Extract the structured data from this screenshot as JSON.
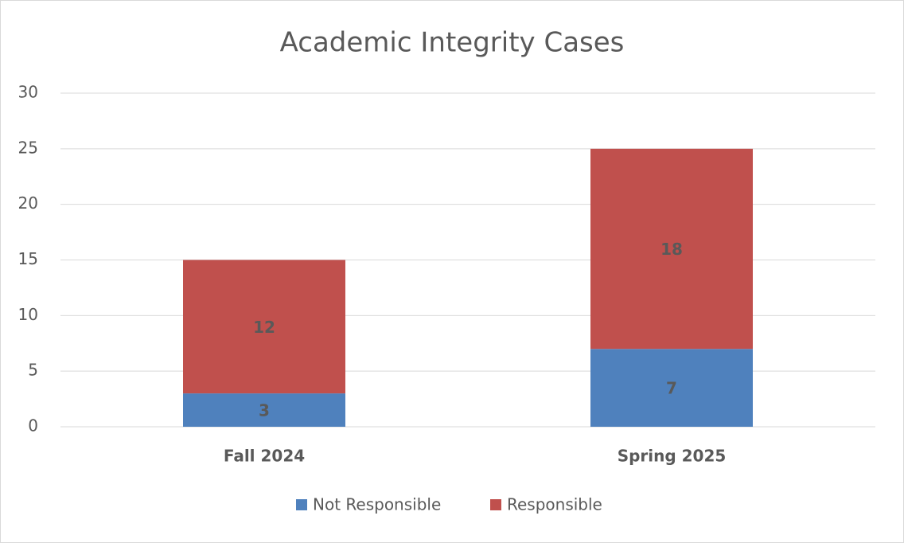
{
  "chart_data": {
    "type": "bar",
    "stacked": true,
    "title": "Academic Integrity Cases",
    "categories": [
      "Fall 2024",
      "Spring 2025"
    ],
    "series": [
      {
        "name": "Not Responsible",
        "color": "#4f81bd",
        "values": [
          3,
          7
        ]
      },
      {
        "name": "Responsible",
        "color": "#c0504d",
        "values": [
          12,
          18
        ]
      }
    ],
    "ylim": [
      0,
      30
    ],
    "yticks": [
      0,
      5,
      10,
      15,
      20,
      25,
      30
    ],
    "grid": true,
    "legend": "bottom"
  }
}
